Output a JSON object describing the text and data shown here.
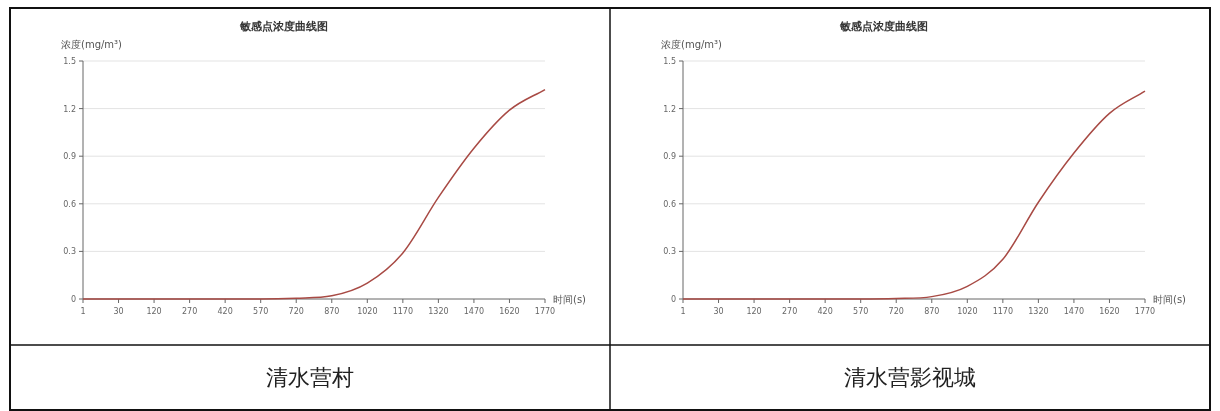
{
  "chart_data": [
    {
      "type": "line",
      "title": "敏感点浓度曲线图",
      "ylabel": "浓度(mg/m³)",
      "xlabel": "时间(s)",
      "categories": [
        "1",
        "30",
        "120",
        "270",
        "420",
        "570",
        "720",
        "870",
        "1020",
        "1170",
        "1320",
        "1470",
        "1620",
        "1770"
      ],
      "series": [
        {
          "color": "#a84a44",
          "values": [
            0,
            0,
            0,
            0,
            0,
            0,
            0.005,
            0.02,
            0.1,
            0.29,
            0.64,
            0.95,
            1.19,
            1.32
          ]
        }
      ],
      "ylim": [
        0,
        1.5
      ],
      "yticks": [
        0,
        0.3,
        0.6,
        0.9,
        1.2,
        1.5
      ],
      "grid": "y",
      "marker": "none",
      "annotations": [
        "清水营村"
      ]
    },
    {
      "type": "line",
      "title": "敏感点浓度曲线图",
      "ylabel": "浓度(mg/m³)",
      "xlabel": "时间(s)",
      "categories": [
        "1",
        "30",
        "120",
        "270",
        "420",
        "570",
        "720",
        "870",
        "1020",
        "1170",
        "1320",
        "1470",
        "1620",
        "1770"
      ],
      "series": [
        {
          "color": "#a84a44",
          "values": [
            0,
            0,
            0,
            0,
            0,
            0,
            0.003,
            0.015,
            0.08,
            0.25,
            0.61,
            0.92,
            1.17,
            1.31
          ]
        }
      ],
      "ylim": [
        0,
        1.5
      ],
      "yticks": [
        0,
        0.3,
        0.6,
        0.9,
        1.2,
        1.5
      ],
      "grid": "y",
      "marker": "none",
      "annotations": [
        "清水营影视城"
      ]
    }
  ]
}
